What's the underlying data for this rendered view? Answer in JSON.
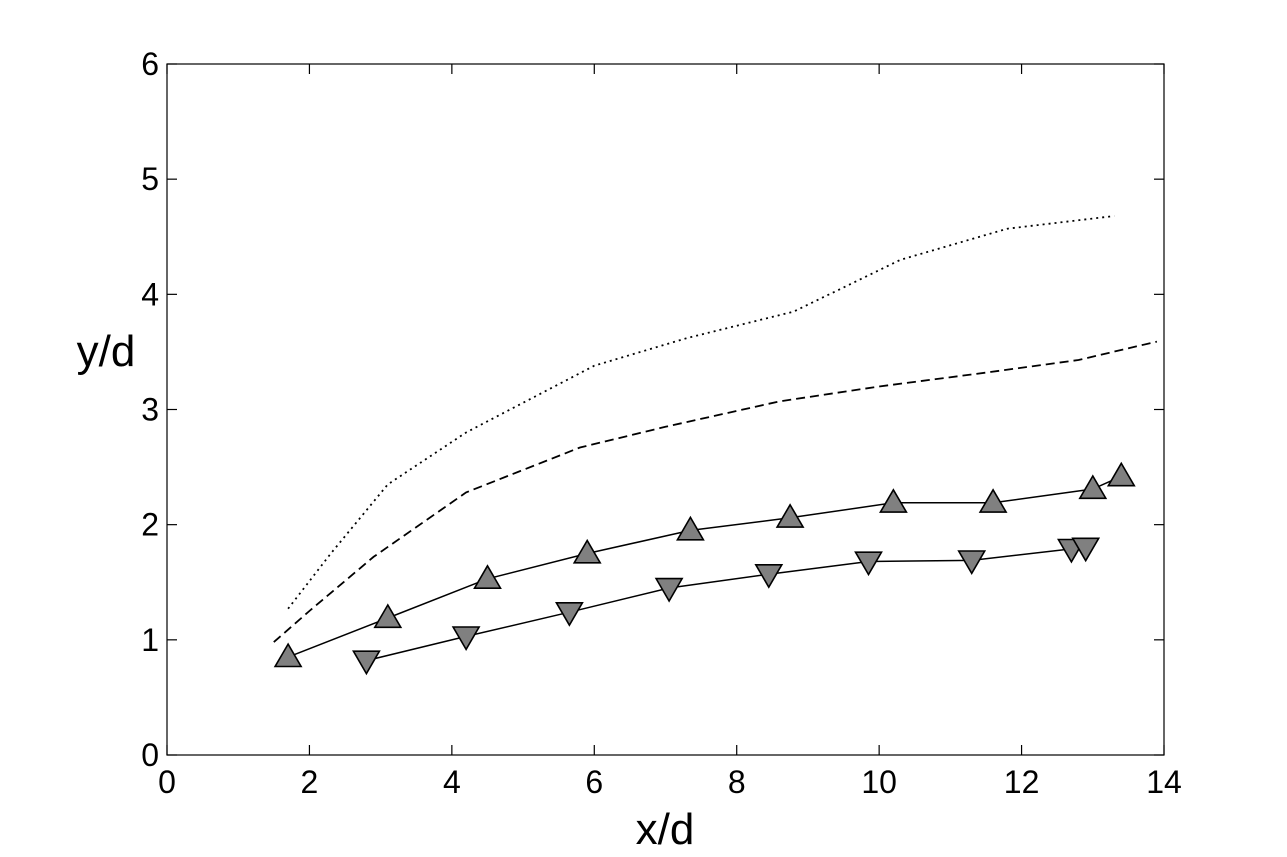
{
  "chart_data": {
    "type": "line",
    "xlabel": "x/d",
    "ylabel": "y/d",
    "xlim": [
      0,
      14
    ],
    "ylim": [
      0,
      6
    ],
    "xticks": [
      "0",
      "2",
      "4",
      "6",
      "8",
      "10",
      "12",
      "14"
    ],
    "yticks": [
      "0",
      "1",
      "2",
      "3",
      "4",
      "5",
      "6"
    ],
    "grid": false,
    "legend": "none",
    "series": [
      {
        "line_style": "dotted",
        "marker": "none",
        "color": "#000000",
        "x": [
          1.7,
          2.3,
          3.1,
          4.2,
          4.6,
          6.0,
          7.3,
          8.8,
          10.3,
          11.8,
          13.3
        ],
        "y": [
          1.27,
          1.75,
          2.35,
          2.8,
          2.93,
          3.38,
          3.62,
          3.85,
          4.3,
          4.57,
          4.68
        ]
      },
      {
        "line_style": "dashed",
        "marker": "none",
        "color": "#000000",
        "x": [
          1.5,
          2.0,
          2.9,
          4.2,
          5.8,
          7.0,
          8.6,
          10.0,
          11.5,
          12.8,
          13.9
        ],
        "y": [
          0.98,
          1.25,
          1.72,
          2.28,
          2.67,
          2.85,
          3.07,
          3.2,
          3.32,
          3.43,
          3.59
        ]
      },
      {
        "line_style": "solid",
        "marker": "triangle-up",
        "color": "#000000",
        "marker_fill": "#808080",
        "x": [
          1.7,
          3.1,
          4.5,
          5.9,
          7.35,
          8.75,
          10.2,
          11.6,
          13.0,
          13.4
        ],
        "y": [
          0.85,
          1.19,
          1.53,
          1.75,
          1.95,
          2.06,
          2.19,
          2.19,
          2.31,
          2.42
        ]
      },
      {
        "line_style": "solid",
        "marker": "triangle-down",
        "color": "#000000",
        "marker_fill": "#808080",
        "x": [
          2.8,
          4.2,
          5.65,
          7.05,
          8.45,
          9.85,
          11.3,
          12.7,
          12.9
        ],
        "y": [
          0.82,
          1.03,
          1.24,
          1.45,
          1.57,
          1.68,
          1.69,
          1.79,
          1.8
        ]
      }
    ]
  }
}
